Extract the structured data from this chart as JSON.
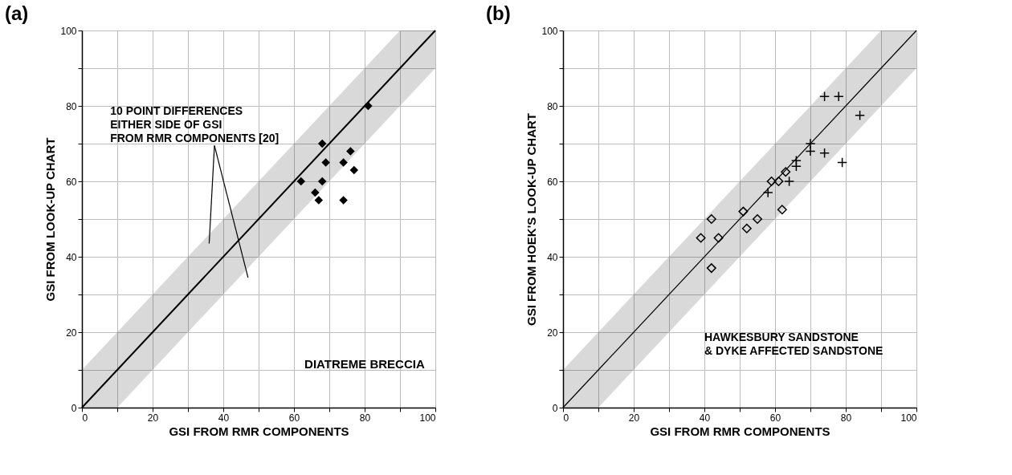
{
  "chart_data": [
    {
      "type": "scatter",
      "title": "(a)",
      "xlabel": "GSI FROM RMR COMPONENTS",
      "ylabel": "GSI FROM LOOK-UP CHART",
      "xlim": [
        0,
        100
      ],
      "ylim": [
        0,
        100
      ],
      "xticks": [
        0,
        {
          "value": 10,
          "label": null
        },
        20,
        {
          "value": 30,
          "label": null
        },
        40,
        {
          "value": 50,
          "label": null
        },
        60,
        {
          "value": 70,
          "label": null
        },
        80,
        {
          "value": 90,
          "label": null
        },
        100
      ],
      "yticks": [
        0,
        {
          "value": 10,
          "label": null
        },
        20,
        {
          "value": 30,
          "label": null
        },
        40,
        {
          "value": 50,
          "label": null
        },
        60,
        {
          "value": 70,
          "label": null
        },
        80,
        {
          "value": 90,
          "label": null
        },
        100
      ],
      "grid": true,
      "annotations": [
        "10 POINT DIFFERENCES\nEITHER SIDE OF GSI\nFROM RMR COMPONENTS [20]",
        "DIATREME BRECCIA"
      ],
      "series": [
        {
          "type": "line",
          "color": "#000000",
          "x": [
            0,
            10,
            90,
            100
          ],
          "values": [
            0,
            10,
            90,
            100
          ],
          "lower": [
            0,
            0,
            80,
            90
          ],
          "upper": [
            10,
            20,
            100,
            100
          ]
        },
        {
          "marker": "diamond",
          "color": "#000000",
          "x": [
            81,
            68,
            76,
            69,
            74,
            77,
            62,
            68,
            66,
            67,
            74
          ],
          "values": [
            80,
            70,
            68,
            65,
            65,
            63,
            60,
            60,
            57,
            55,
            55
          ]
        }
      ]
    },
    {
      "type": "scatter",
      "title": "(b)",
      "xlabel": "GSI FROM RMR COMPONENTS",
      "ylabel": "GSI FROM HOEK'S LOOK-UP CHART",
      "xlim": [
        0,
        100
      ],
      "ylim": [
        0,
        100
      ],
      "xticks": [
        0,
        {
          "value": 10,
          "label": null
        },
        20,
        {
          "value": 30,
          "label": null
        },
        40,
        {
          "value": 50,
          "label": null
        },
        60,
        {
          "value": 70,
          "label": null
        },
        80,
        {
          "value": 90,
          "label": null
        },
        100
      ],
      "yticks": [
        0,
        {
          "value": 10,
          "label": null
        },
        20,
        {
          "value": 30,
          "label": null
        },
        40,
        {
          "value": 50,
          "label": null
        },
        60,
        {
          "value": 70,
          "label": null
        },
        80,
        {
          "value": 90,
          "label": null
        },
        100
      ],
      "grid": true,
      "annotations": [
        "HAWKESBURY SANDSTONE\n& DYKE AFFECTED SANDSTONE"
      ],
      "series": [
        {
          "type": "line",
          "color": "#000000",
          "x": [
            0,
            10,
            90,
            100
          ],
          "values": [
            0,
            10,
            90,
            100
          ],
          "lower": [
            0,
            0,
            80,
            90
          ],
          "upper": [
            10,
            20,
            100,
            100
          ]
        },
        {
          "marker": "diamond",
          "color": "#000000",
          "x": [
            39,
            42,
            42,
            44,
            51,
            52,
            55,
            59,
            61,
            62,
            63
          ],
          "values": [
            45,
            50,
            37,
            45,
            52,
            47.5,
            50,
            60,
            60,
            52.5,
            62.5
          ]
        },
        {
          "marker": "cross",
          "color": "#000000",
          "x": [
            58,
            64,
            66,
            66,
            70,
            70,
            74,
            79,
            74,
            78,
            84
          ],
          "values": [
            57,
            60,
            64,
            65.5,
            70,
            68,
            67.5,
            65,
            82.5,
            82.5,
            77.5
          ]
        }
      ]
    }
  ]
}
